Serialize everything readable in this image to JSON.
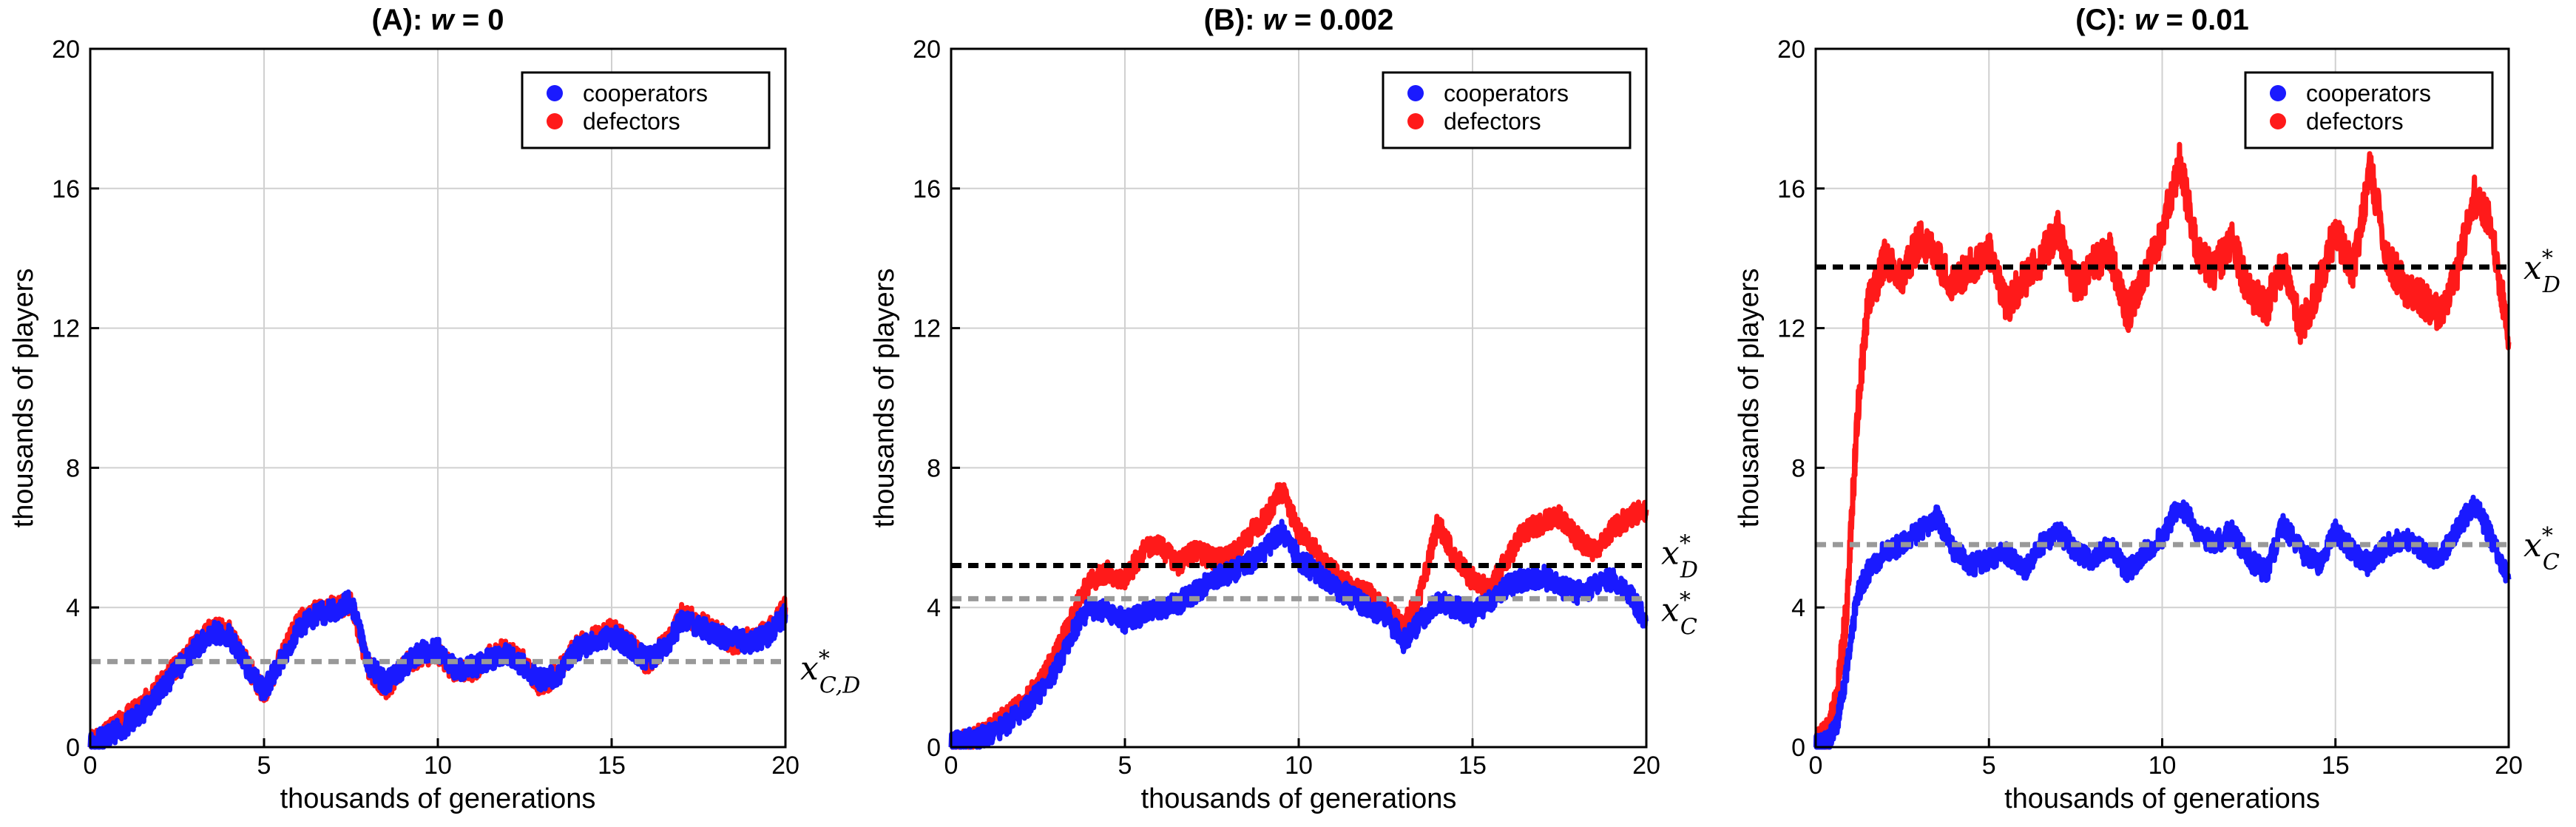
{
  "figure": {
    "panels": [
      {
        "title_prefix": "(A): ",
        "title_var": "w",
        "title_value": " = 0",
        "xlabel": "thousands of generations",
        "ylabel": "thousands of players",
        "xticks": [
          "0",
          "5",
          "10",
          "15",
          "20"
        ],
        "yticks": [
          "0",
          "4",
          "8",
          "12",
          "16",
          "20"
        ],
        "legend": [
          "cooperators",
          "defectors"
        ],
        "annotations": [
          {
            "var": "x",
            "sup": "*",
            "sub": "C,D",
            "y": 2.45,
            "line_color": "#999999"
          }
        ]
      },
      {
        "title_prefix": "(B): ",
        "title_var": "w",
        "title_value": " = 0.002",
        "xlabel": "thousands of generations",
        "ylabel": "thousands of players",
        "xticks": [
          "0",
          "5",
          "10",
          "15",
          "20"
        ],
        "yticks": [
          "0",
          "4",
          "8",
          "12",
          "16",
          "20"
        ],
        "legend": [
          "cooperators",
          "defectors"
        ],
        "annotations": [
          {
            "var": "x",
            "sup": "*",
            "sub": "D",
            "y": 5.2,
            "line_color": "#000000"
          },
          {
            "var": "x",
            "sup": "*",
            "sub": "C",
            "y": 4.25,
            "line_color": "#999999"
          }
        ]
      },
      {
        "title_prefix": "(C): ",
        "title_var": "w",
        "title_value": " = 0.01",
        "xlabel": "thousands of generations",
        "ylabel": "thousands of players",
        "xticks": [
          "0",
          "5",
          "10",
          "15",
          "20"
        ],
        "yticks": [
          "0",
          "4",
          "8",
          "12",
          "16",
          "20"
        ],
        "legend": [
          "cooperators",
          "defectors"
        ],
        "annotations": [
          {
            "var": "x",
            "sup": "*",
            "sub": "D",
            "y": 13.75,
            "line_color": "#000000"
          },
          {
            "var": "x",
            "sup": "*",
            "sub": "C",
            "y": 5.8,
            "line_color": "#999999"
          }
        ]
      }
    ]
  },
  "colors": {
    "cooperators": "#1a1aff",
    "defectors": "#ff1a1a",
    "grid": "#d0d0d0",
    "eq_black": "#000000",
    "eq_gray": "#999999"
  },
  "chart_data": [
    {
      "type": "line",
      "title": "(A): w = 0",
      "xlabel": "thousands of generations",
      "ylabel": "thousands of players",
      "xlim": [
        0,
        20
      ],
      "ylim": [
        0,
        20
      ],
      "grid": true,
      "legend_position": "top-right",
      "series": [
        {
          "name": "defectors",
          "color": "#ff1a1a",
          "x": [
            0,
            0.5,
            1,
            1.5,
            2,
            2.5,
            3,
            3.5,
            4,
            4.5,
            5,
            5.5,
            6,
            6.5,
            7,
            7.5,
            8,
            8.5,
            9,
            9.5,
            10,
            10.5,
            11,
            11.5,
            12,
            12.5,
            13,
            13.5,
            14,
            14.5,
            15,
            15.5,
            16,
            16.5,
            17,
            17.5,
            18,
            18.5,
            19,
            19.5,
            20
          ],
          "y": [
            0.2,
            0.4,
            0.8,
            1.2,
            1.8,
            2.3,
            2.9,
            3.4,
            3.3,
            2.4,
            1.5,
            2.6,
            3.6,
            3.9,
            4.0,
            4.1,
            2.3,
            1.6,
            2.4,
            2.6,
            2.7,
            2.1,
            2.2,
            2.6,
            2.8,
            2.4,
            1.7,
            2.2,
            2.9,
            3.1,
            3.4,
            3.0,
            2.4,
            2.9,
            3.8,
            3.6,
            3.3,
            3.0,
            3.1,
            3.3,
            4.0
          ]
        },
        {
          "name": "cooperators",
          "color": "#1a1aff",
          "x": [
            0,
            0.5,
            1,
            1.5,
            2,
            2.5,
            3,
            3.5,
            4,
            4.5,
            5,
            5.5,
            6,
            6.5,
            7,
            7.5,
            8,
            8.5,
            9,
            9.5,
            10,
            10.5,
            11,
            11.5,
            12,
            12.5,
            13,
            13.5,
            14,
            14.5,
            15,
            15.5,
            16,
            16.5,
            17,
            17.5,
            18,
            18.5,
            19,
            19.5,
            20
          ],
          "y": [
            0.1,
            0.3,
            0.6,
            1.0,
            1.6,
            2.2,
            2.8,
            3.3,
            3.2,
            2.3,
            1.6,
            2.5,
            3.4,
            3.8,
            3.9,
            4.2,
            2.4,
            1.8,
            2.3,
            2.7,
            2.8,
            2.2,
            2.3,
            2.5,
            2.7,
            2.3,
            1.9,
            2.1,
            2.8,
            3.0,
            3.2,
            2.9,
            2.5,
            2.8,
            3.6,
            3.5,
            3.2,
            3.1,
            3.0,
            3.2,
            3.8
          ]
        }
      ],
      "reference_lines": [
        {
          "label": "x*C,D",
          "y": 2.45,
          "color": "#999999"
        }
      ]
    },
    {
      "type": "line",
      "title": "(B): w = 0.002",
      "xlabel": "thousands of generations",
      "ylabel": "thousands of players",
      "xlim": [
        0,
        20
      ],
      "ylim": [
        0,
        20
      ],
      "grid": true,
      "legend_position": "top-right",
      "series": [
        {
          "name": "defectors",
          "color": "#ff1a1a",
          "x": [
            0,
            0.5,
            1,
            1.5,
            2,
            2.5,
            3,
            3.5,
            4,
            4.5,
            5,
            5.5,
            6,
            6.5,
            7,
            7.5,
            8,
            8.5,
            9,
            9.5,
            10,
            10.5,
            11,
            11.5,
            12,
            12.5,
            13,
            13.5,
            14,
            14.5,
            15,
            15.5,
            16,
            16.5,
            17,
            17.5,
            18,
            18.5,
            19,
            19.5,
            20
          ],
          "y": [
            0.1,
            0.2,
            0.4,
            0.8,
            1.2,
            1.8,
            2.6,
            3.8,
            4.8,
            5.0,
            4.8,
            5.6,
            5.8,
            5.2,
            5.6,
            5.4,
            5.4,
            6.0,
            6.5,
            7.4,
            6.2,
            5.6,
            5.0,
            4.6,
            4.4,
            4.0,
            3.4,
            4.4,
            6.4,
            5.4,
            4.8,
            4.6,
            5.4,
            6.2,
            6.4,
            6.6,
            6.0,
            5.6,
            6.2,
            6.6,
            6.8
          ]
        },
        {
          "name": "cooperators",
          "color": "#1a1aff",
          "x": [
            0,
            0.5,
            1,
            1.5,
            2,
            2.5,
            3,
            3.5,
            4,
            4.5,
            5,
            5.5,
            6,
            6.5,
            7,
            7.5,
            8,
            8.5,
            9,
            9.5,
            10,
            10.5,
            11,
            11.5,
            12,
            12.5,
            13,
            13.5,
            14,
            14.5,
            15,
            15.5,
            16,
            16.5,
            17,
            17.5,
            18,
            18.5,
            19,
            19.5,
            20
          ],
          "y": [
            0.1,
            0.2,
            0.3,
            0.6,
            1.0,
            1.5,
            2.2,
            3.3,
            4.0,
            3.9,
            3.6,
            3.8,
            4.0,
            4.1,
            4.4,
            4.8,
            5.0,
            5.2,
            5.6,
            6.2,
            5.4,
            5.0,
            4.6,
            4.3,
            4.0,
            3.8,
            3.0,
            3.6,
            4.2,
            4.0,
            3.8,
            4.2,
            4.6,
            4.8,
            4.9,
            4.6,
            4.4,
            4.6,
            4.8,
            4.4,
            3.6
          ]
        }
      ],
      "reference_lines": [
        {
          "label": "x*D",
          "y": 5.2,
          "color": "#000000"
        },
        {
          "label": "x*C",
          "y": 4.25,
          "color": "#999999"
        }
      ]
    },
    {
      "type": "line",
      "title": "(C): w = 0.01",
      "xlabel": "thousands of generations",
      "ylabel": "thousands of players",
      "xlim": [
        0,
        20
      ],
      "ylim": [
        0,
        20
      ],
      "grid": true,
      "legend_position": "top-right",
      "series": [
        {
          "name": "defectors",
          "color": "#ff1a1a",
          "x": [
            0,
            0.3,
            0.6,
            0.9,
            1.2,
            1.5,
            2,
            2.5,
            3,
            3.5,
            4,
            4.5,
            5,
            5.5,
            6,
            6.5,
            7,
            7.5,
            8,
            8.5,
            9,
            9.5,
            10,
            10.5,
            11,
            11.5,
            12,
            12.5,
            13,
            13.5,
            14,
            14.5,
            15,
            15.5,
            16,
            16.5,
            17,
            17.5,
            18,
            18.5,
            19,
            19.5,
            20
          ],
          "y": [
            0,
            0.2,
            1.2,
            4.0,
            9.5,
            12.6,
            14.0,
            13.4,
            14.6,
            14.0,
            13.2,
            13.8,
            14.2,
            12.6,
            13.4,
            14.0,
            14.8,
            13.2,
            13.8,
            14.2,
            12.4,
            13.6,
            14.8,
            16.8,
            14.2,
            13.6,
            14.6,
            13.0,
            12.6,
            13.8,
            12.0,
            13.2,
            14.8,
            13.6,
            16.6,
            14.0,
            13.2,
            12.8,
            12.4,
            13.6,
            15.8,
            15.0,
            11.6
          ]
        },
        {
          "name": "cooperators",
          "color": "#1a1aff",
          "x": [
            0,
            0.3,
            0.6,
            0.9,
            1.2,
            1.5,
            2,
            2.5,
            3,
            3.5,
            4,
            4.5,
            5,
            5.5,
            6,
            6.5,
            7,
            7.5,
            8,
            8.5,
            9,
            9.5,
            10,
            10.5,
            11,
            11.5,
            12,
            12.5,
            13,
            13.5,
            14,
            14.5,
            15,
            15.5,
            16,
            16.5,
            17,
            17.5,
            18,
            18.5,
            19,
            19.5,
            20
          ],
          "y": [
            0,
            0.1,
            0.6,
            2.2,
            4.4,
            5.0,
            5.6,
            5.8,
            6.2,
            6.6,
            5.6,
            5.2,
            5.4,
            5.6,
            5.0,
            5.8,
            6.2,
            5.6,
            5.4,
            5.8,
            5.0,
            5.6,
            6.0,
            7.0,
            6.2,
            5.8,
            6.2,
            5.4,
            5.0,
            6.4,
            5.6,
            5.2,
            6.2,
            5.6,
            5.2,
            5.8,
            6.0,
            5.6,
            5.4,
            6.2,
            7.0,
            6.0,
            4.8
          ]
        }
      ],
      "reference_lines": [
        {
          "label": "x*D",
          "y": 13.75,
          "color": "#000000"
        },
        {
          "label": "x*C",
          "y": 5.8,
          "color": "#999999"
        }
      ]
    }
  ]
}
